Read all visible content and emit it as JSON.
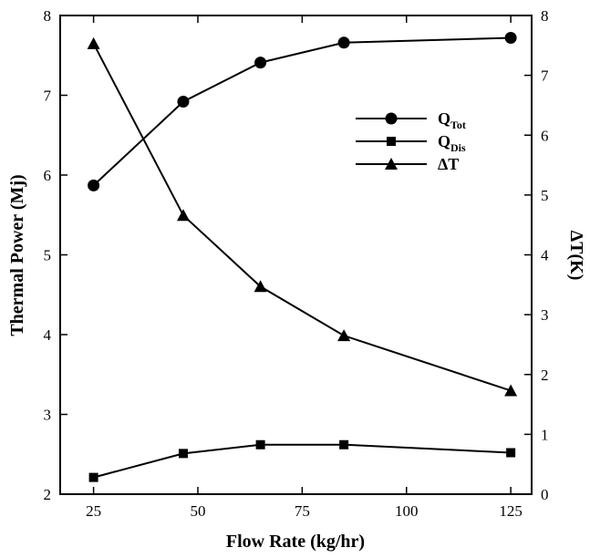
{
  "chart_data": {
    "type": "line",
    "x": [
      25,
      46.5,
      65,
      85,
      125
    ],
    "xlabel": "Flow Rate (kg/hr)",
    "ylabel": "Thermal Power (Mj)",
    "y2label": "ΔT(K)",
    "xlim": [
      17,
      130
    ],
    "ylim": [
      2,
      8
    ],
    "y2lim": [
      0,
      8
    ],
    "x_ticks": [
      25,
      50,
      75,
      100,
      125
    ],
    "y_ticks": [
      2,
      3,
      4,
      5,
      6,
      7,
      8
    ],
    "y2_ticks": [
      0,
      1,
      2,
      3,
      4,
      5,
      6,
      7,
      8
    ],
    "series": [
      {
        "name": "Q",
        "subscript": "Tot",
        "axis": "left",
        "marker": "circle",
        "values": [
          5.87,
          6.92,
          7.41,
          7.66,
          7.72
        ]
      },
      {
        "name": "Q",
        "subscript": "Dis",
        "axis": "left",
        "marker": "square",
        "values": [
          2.21,
          2.51,
          2.62,
          2.62,
          2.52
        ]
      },
      {
        "name": "ΔT",
        "subscript": "",
        "axis": "right",
        "marker": "triangle",
        "values": [
          7.53,
          4.66,
          3.47,
          2.65,
          1.73
        ]
      }
    ],
    "legend": "upper-right",
    "grid": false
  }
}
